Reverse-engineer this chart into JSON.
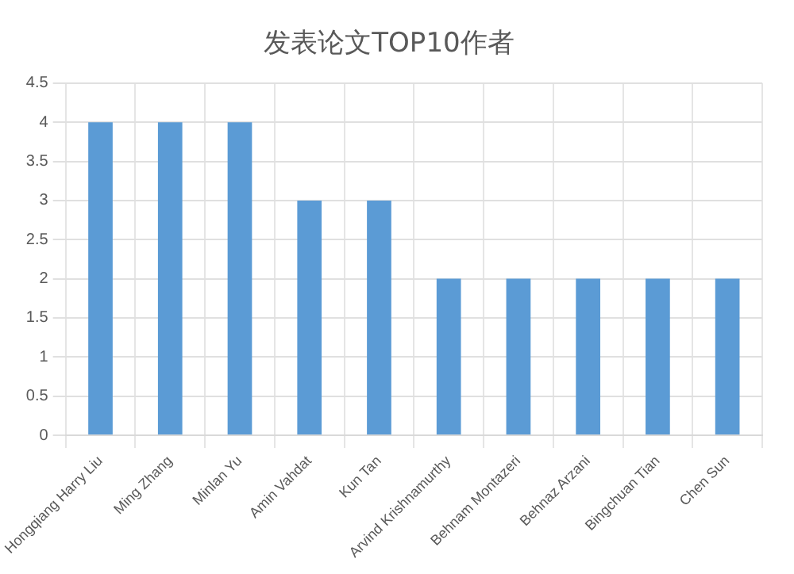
{
  "chart_data": {
    "type": "bar",
    "title": "发表论文TOP10作者",
    "categories": [
      "Hongqiang Harry Liu",
      "Ming Zhang",
      "Minlan Yu",
      "Amin Vahdat",
      "Kun Tan",
      "Arvind Krishnamurthy",
      "Behnam Montazeri",
      "Behnaz Arzani",
      "Bingchuan Tian",
      "Chen Sun"
    ],
    "values": [
      4,
      4,
      4,
      3,
      3,
      2,
      2,
      2,
      2,
      2
    ],
    "color": "#5b9bd5",
    "ylim": [
      0,
      4.5
    ],
    "yticks": [
      0,
      0.5,
      1,
      1.5,
      2,
      2.5,
      3,
      3.5,
      4,
      4.5
    ],
    "grid": true
  }
}
